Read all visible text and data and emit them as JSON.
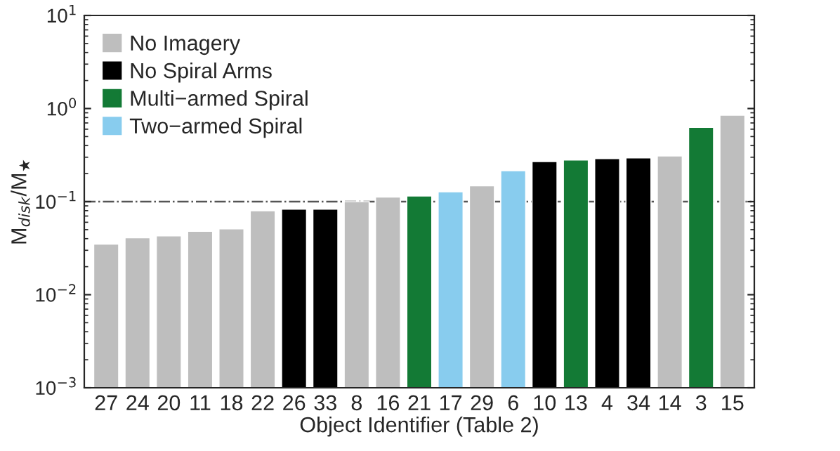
{
  "chart_data": {
    "type": "bar",
    "xlabel": "Object Identifier (Table 2)",
    "ylabel": "M$_{disk}$/M$_{★}$",
    "categories": [
      "27",
      "24",
      "20",
      "11",
      "18",
      "22",
      "26",
      "33",
      "8",
      "16",
      "21",
      "17",
      "29",
      "6",
      "10",
      "13",
      "4",
      "34",
      "14",
      "3",
      "15"
    ],
    "series": [
      {
        "name": "No Imagery",
        "color": "#bebebe",
        "values": [
          0.035,
          0.041,
          0.043,
          0.048,
          0.051,
          0.08,
          null,
          null,
          0.1,
          0.112,
          null,
          null,
          0.148,
          null,
          null,
          null,
          null,
          null,
          0.31,
          null,
          0.85
        ]
      },
      {
        "name": "No Spiral Arms",
        "color": "#000000",
        "values": [
          null,
          null,
          null,
          null,
          null,
          null,
          0.083,
          0.083,
          null,
          null,
          null,
          null,
          null,
          null,
          0.27,
          null,
          0.29,
          0.295,
          null,
          null,
          null
        ]
      },
      {
        "name": "Multi−armed Spiral",
        "color": "#137a35",
        "values": [
          null,
          null,
          null,
          null,
          null,
          null,
          null,
          null,
          null,
          null,
          0.115,
          null,
          null,
          null,
          null,
          0.28,
          null,
          null,
          null,
          0.63,
          null
        ]
      },
      {
        "name": "Two−armed Spiral",
        "color": "#88ccee",
        "values": [
          null,
          null,
          null,
          null,
          null,
          null,
          null,
          null,
          null,
          null,
          null,
          0.128,
          null,
          0.215,
          null,
          null,
          null,
          null,
          null,
          null,
          null
        ]
      }
    ],
    "log": "y",
    "ylim": [
      0.001,
      10
    ],
    "yticks": [
      {
        "value": 0.001,
        "label": "10$^{−3}$"
      },
      {
        "value": 0.01,
        "label": "10$^{−2}$"
      },
      {
        "value": 0.1,
        "label": "10$^{−1}$"
      },
      {
        "value": 1,
        "label": "10$^{0}$"
      },
      {
        "value": 10,
        "label": "10$^{1}$"
      }
    ],
    "ref_lines": [
      {
        "axis": "y",
        "value": 0.1,
        "color": "#555555",
        "line_style": "dashdot"
      }
    ],
    "legend": "top left",
    "grid": false
  }
}
